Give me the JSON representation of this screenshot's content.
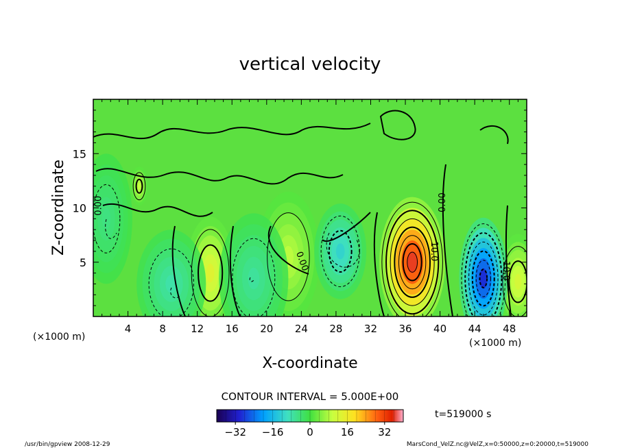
{
  "chart_data": {
    "type": "heatmap",
    "title": "vertical velocity",
    "xlabel": "X-coordinate",
    "ylabel": "Z-coordinate",
    "x_unit_left": "(×1000 m)",
    "x_unit_right": "(×1000 m)",
    "xlim": [
      0,
      50
    ],
    "ylim": [
      0,
      20
    ],
    "x_ticks": [
      "4",
      "8",
      "12",
      "16",
      "20",
      "24",
      "28",
      "32",
      "36",
      "40",
      "44",
      "48"
    ],
    "y_ticks": [
      "5",
      "10",
      "15"
    ],
    "contour_interval_label": "CONTOUR INTERVAL = 5.000E+00",
    "time_label": "t=519000 s",
    "colorbar": {
      "range": [
        -40,
        40
      ],
      "ticks": [
        "−32",
        "−16",
        "0",
        "16",
        "32"
      ]
    },
    "contour_labels": [
      "0.00",
      "0.00",
      "0.00",
      "10.0",
      "10.0"
    ],
    "features": [
      {
        "x": 13.5,
        "z": 4.0,
        "value": 14,
        "sx": 1.4,
        "sz": 2.6
      },
      {
        "x": 22.5,
        "z": 5.5,
        "value": 9,
        "sx": 1.8,
        "sz": 3.0
      },
      {
        "x": 36.8,
        "z": 5.0,
        "value": 36,
        "sx": 1.9,
        "sz": 3.0
      },
      {
        "x": 49.0,
        "z": 3.2,
        "value": 12,
        "sx": 1.2,
        "sz": 2.2
      },
      {
        "x": 5.3,
        "z": 12.0,
        "value": 10,
        "sx": 0.5,
        "sz": 0.9
      },
      {
        "x": 45.0,
        "z": 3.5,
        "value": -30,
        "sx": 1.4,
        "sz": 2.8
      },
      {
        "x": 28.5,
        "z": 6.0,
        "value": -12,
        "sx": 1.5,
        "sz": 2.2
      },
      {
        "x": 18.5,
        "z": 3.5,
        "value": -7,
        "sx": 2.0,
        "sz": 3.0
      },
      {
        "x": 9.0,
        "z": 3.0,
        "value": -8,
        "sx": 2.0,
        "sz": 2.5
      },
      {
        "x": 1.5,
        "z": 9.0,
        "value": -5,
        "sx": 1.5,
        "sz": 3.0
      }
    ]
  },
  "footer": {
    "left": "/usr/bin/gpview   2008-12-29",
    "right": "MarsCond_VelZ.nc@VelZ,x=0:50000,z=0:20000,t=519000"
  }
}
